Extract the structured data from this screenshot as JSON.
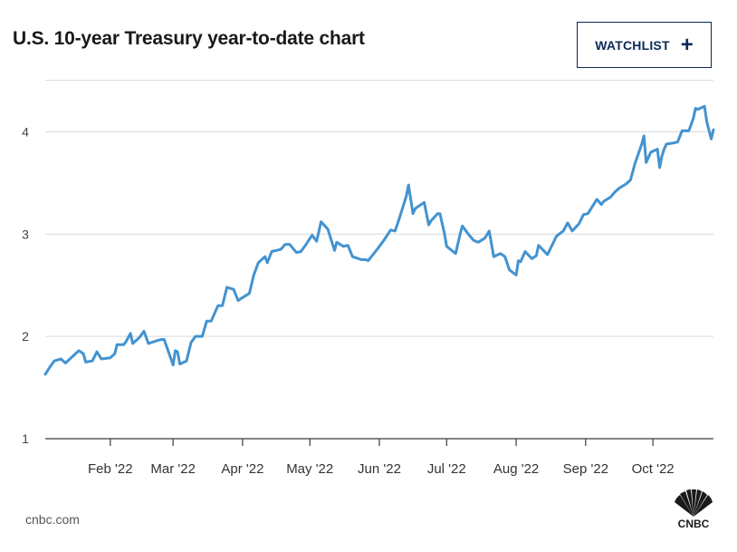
{
  "title": "U.S. 10-year Treasury year-to-date chart",
  "watchlist": {
    "label": "WATCHLIST",
    "icon": "plus-icon"
  },
  "source": "cnbc.com",
  "logo": {
    "text": "CNBC",
    "icon": "nbc-peacock-icon"
  },
  "colors": {
    "line": "#4393d0",
    "accent": "#0c2a56"
  },
  "chart_data": {
    "type": "line",
    "title": "U.S. 10-year Treasury year-to-date chart",
    "xlabel": "",
    "ylabel": "",
    "ylim": [
      1,
      4.5
    ],
    "xlim": [
      "2022-01-03",
      "2022-10-28"
    ],
    "yticks": [
      1,
      2,
      3,
      4
    ],
    "grid": true,
    "xticks": [
      {
        "date": "2022-02-01",
        "label": "Feb '22"
      },
      {
        "date": "2022-03-01",
        "label": "Mar '22"
      },
      {
        "date": "2022-04-01",
        "label": "Apr '22"
      },
      {
        "date": "2022-05-01",
        "label": "May '22"
      },
      {
        "date": "2022-06-01",
        "label": "Jun '22"
      },
      {
        "date": "2022-07-01",
        "label": "Jul '22"
      },
      {
        "date": "2022-08-01",
        "label": "Aug '22"
      },
      {
        "date": "2022-09-01",
        "label": "Sep '22"
      },
      {
        "date": "2022-10-01",
        "label": "Oct '22"
      }
    ],
    "series": [
      {
        "points": [
          [
            "2022-01-03",
            1.63
          ],
          [
            "2022-01-05",
            1.7
          ],
          [
            "2022-01-07",
            1.76
          ],
          [
            "2022-01-10",
            1.78
          ],
          [
            "2022-01-12",
            1.74
          ],
          [
            "2022-01-14",
            1.78
          ],
          [
            "2022-01-18",
            1.86
          ],
          [
            "2022-01-20",
            1.83
          ],
          [
            "2022-01-21",
            1.75
          ],
          [
            "2022-01-24",
            1.76
          ],
          [
            "2022-01-26",
            1.85
          ],
          [
            "2022-01-28",
            1.78
          ],
          [
            "2022-02-01",
            1.79
          ],
          [
            "2022-02-03",
            1.83
          ],
          [
            "2022-02-04",
            1.92
          ],
          [
            "2022-02-07",
            1.92
          ],
          [
            "2022-02-08",
            1.95
          ],
          [
            "2022-02-10",
            2.03
          ],
          [
            "2022-02-11",
            1.93
          ],
          [
            "2022-02-14",
            1.99
          ],
          [
            "2022-02-16",
            2.05
          ],
          [
            "2022-02-18",
            1.93
          ],
          [
            "2022-02-22",
            1.96
          ],
          [
            "2022-02-24",
            1.97
          ],
          [
            "2022-02-25",
            1.97
          ],
          [
            "2022-03-01",
            1.72
          ],
          [
            "2022-03-02",
            1.86
          ],
          [
            "2022-03-03",
            1.85
          ],
          [
            "2022-03-04",
            1.73
          ],
          [
            "2022-03-07",
            1.76
          ],
          [
            "2022-03-09",
            1.94
          ],
          [
            "2022-03-11",
            2.0
          ],
          [
            "2022-03-14",
            2.0
          ],
          [
            "2022-03-16",
            2.15
          ],
          [
            "2022-03-18",
            2.15
          ],
          [
            "2022-03-21",
            2.3
          ],
          [
            "2022-03-23",
            2.3
          ],
          [
            "2022-03-25",
            2.48
          ],
          [
            "2022-03-28",
            2.46
          ],
          [
            "2022-03-30",
            2.35
          ],
          [
            "2022-04-01",
            2.38
          ],
          [
            "2022-04-04",
            2.42
          ],
          [
            "2022-04-06",
            2.6
          ],
          [
            "2022-04-08",
            2.72
          ],
          [
            "2022-04-11",
            2.78
          ],
          [
            "2022-04-12",
            2.72
          ],
          [
            "2022-04-14",
            2.83
          ],
          [
            "2022-04-18",
            2.85
          ],
          [
            "2022-04-20",
            2.9
          ],
          [
            "2022-04-22",
            2.9
          ],
          [
            "2022-04-25",
            2.82
          ],
          [
            "2022-04-27",
            2.83
          ],
          [
            "2022-04-29",
            2.89
          ],
          [
            "2022-05-02",
            2.99
          ],
          [
            "2022-05-04",
            2.93
          ],
          [
            "2022-05-06",
            3.12
          ],
          [
            "2022-05-09",
            3.05
          ],
          [
            "2022-05-11",
            2.91
          ],
          [
            "2022-05-12",
            2.84
          ],
          [
            "2022-05-13",
            2.92
          ],
          [
            "2022-05-16",
            2.88
          ],
          [
            "2022-05-18",
            2.89
          ],
          [
            "2022-05-20",
            2.78
          ],
          [
            "2022-05-24",
            2.75
          ],
          [
            "2022-05-26",
            2.75
          ],
          [
            "2022-05-27",
            2.74
          ],
          [
            "2022-05-31",
            2.85
          ],
          [
            "2022-06-03",
            2.94
          ],
          [
            "2022-06-06",
            3.04
          ],
          [
            "2022-06-08",
            3.03
          ],
          [
            "2022-06-10",
            3.16
          ],
          [
            "2022-06-13",
            3.37
          ],
          [
            "2022-06-14",
            3.48
          ],
          [
            "2022-06-16",
            3.2
          ],
          [
            "2022-06-17",
            3.25
          ],
          [
            "2022-06-21",
            3.31
          ],
          [
            "2022-06-23",
            3.09
          ],
          [
            "2022-06-24",
            3.13
          ],
          [
            "2022-06-27",
            3.2
          ],
          [
            "2022-06-28",
            3.2
          ],
          [
            "2022-06-30",
            3.01
          ],
          [
            "2022-07-01",
            2.88
          ],
          [
            "2022-07-05",
            2.81
          ],
          [
            "2022-07-07",
            3.0
          ],
          [
            "2022-07-08",
            3.08
          ],
          [
            "2022-07-11",
            2.99
          ],
          [
            "2022-07-13",
            2.94
          ],
          [
            "2022-07-15",
            2.92
          ],
          [
            "2022-07-18",
            2.96
          ],
          [
            "2022-07-20",
            3.03
          ],
          [
            "2022-07-22",
            2.78
          ],
          [
            "2022-07-25",
            2.81
          ],
          [
            "2022-07-27",
            2.78
          ],
          [
            "2022-07-29",
            2.65
          ],
          [
            "2022-08-01",
            2.6
          ],
          [
            "2022-08-02",
            2.74
          ],
          [
            "2022-08-03",
            2.73
          ],
          [
            "2022-08-05",
            2.83
          ],
          [
            "2022-08-08",
            2.76
          ],
          [
            "2022-08-10",
            2.79
          ],
          [
            "2022-08-11",
            2.89
          ],
          [
            "2022-08-15",
            2.8
          ],
          [
            "2022-08-17",
            2.89
          ],
          [
            "2022-08-19",
            2.98
          ],
          [
            "2022-08-22",
            3.03
          ],
          [
            "2022-08-24",
            3.11
          ],
          [
            "2022-08-26",
            3.03
          ],
          [
            "2022-08-29",
            3.1
          ],
          [
            "2022-08-31",
            3.19
          ],
          [
            "2022-09-02",
            3.2
          ],
          [
            "2022-09-06",
            3.34
          ],
          [
            "2022-09-08",
            3.29
          ],
          [
            "2022-09-09",
            3.32
          ],
          [
            "2022-09-12",
            3.36
          ],
          [
            "2022-09-14",
            3.41
          ],
          [
            "2022-09-16",
            3.45
          ],
          [
            "2022-09-19",
            3.49
          ],
          [
            "2022-09-21",
            3.53
          ],
          [
            "2022-09-23",
            3.69
          ],
          [
            "2022-09-26",
            3.88
          ],
          [
            "2022-09-27",
            3.96
          ],
          [
            "2022-09-28",
            3.7
          ],
          [
            "2022-09-30",
            3.8
          ],
          [
            "2022-10-03",
            3.83
          ],
          [
            "2022-10-04",
            3.65
          ],
          [
            "2022-10-05",
            3.76
          ],
          [
            "2022-10-06",
            3.83
          ],
          [
            "2022-10-07",
            3.88
          ],
          [
            "2022-10-10",
            3.89
          ],
          [
            "2022-10-12",
            3.9
          ],
          [
            "2022-10-14",
            4.01
          ],
          [
            "2022-10-17",
            4.01
          ],
          [
            "2022-10-19",
            4.13
          ],
          [
            "2022-10-20",
            4.23
          ],
          [
            "2022-10-21",
            4.22
          ],
          [
            "2022-10-24",
            4.25
          ],
          [
            "2022-10-25",
            4.1
          ],
          [
            "2022-10-27",
            3.93
          ],
          [
            "2022-10-28",
            4.02
          ]
        ]
      }
    ]
  }
}
